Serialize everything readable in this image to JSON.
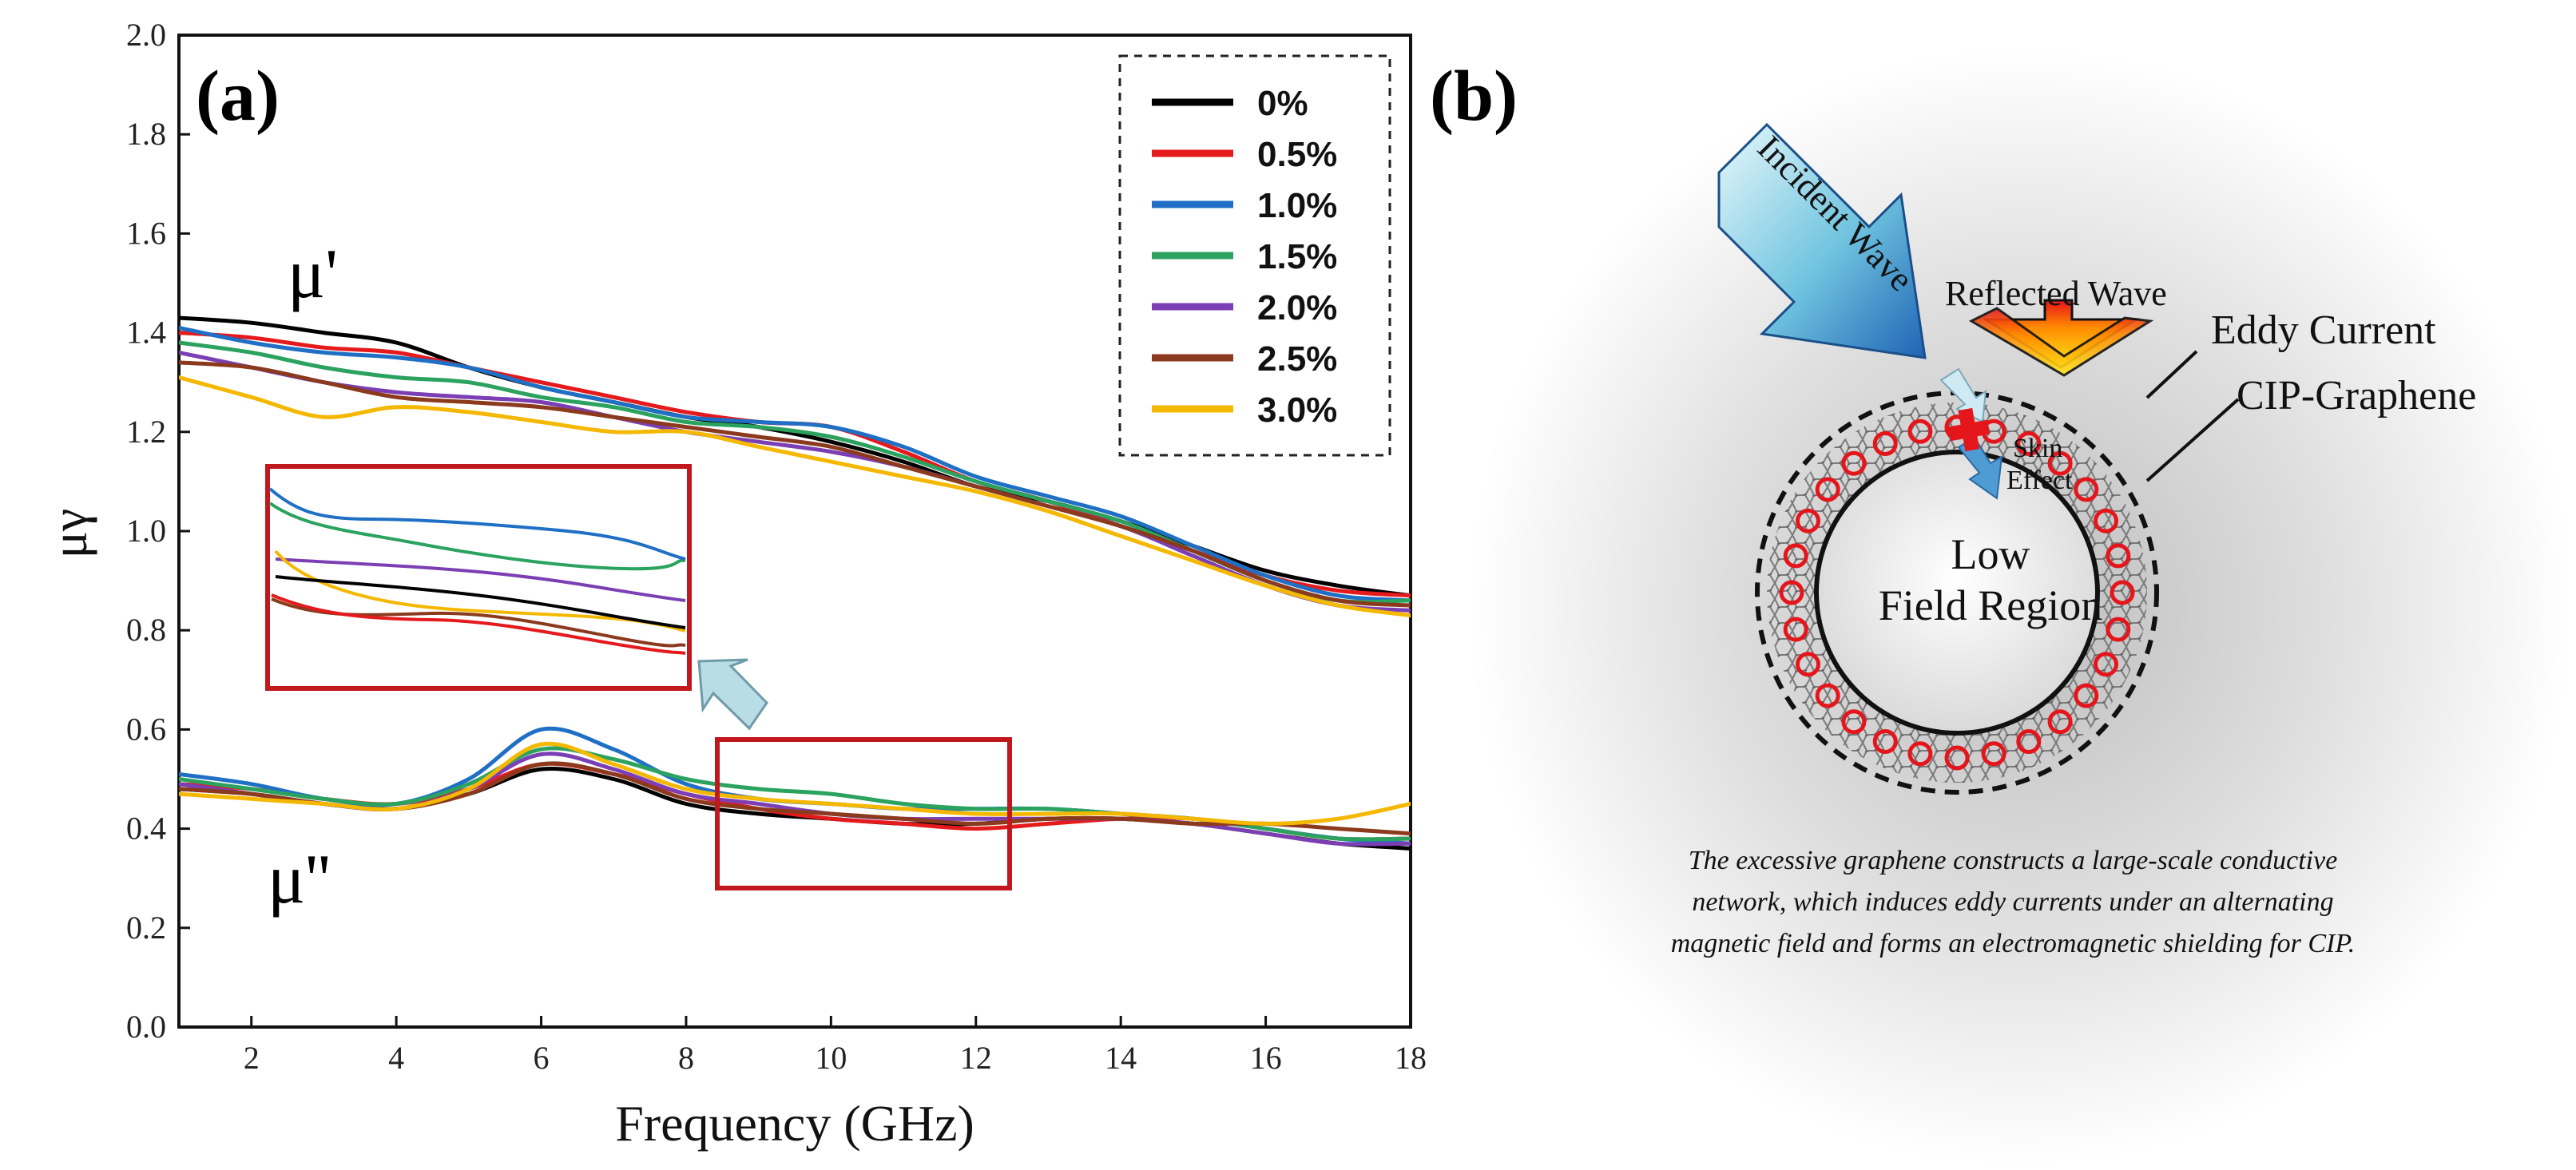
{
  "panel_a": {
    "label": "(a)"
  },
  "panel_b": {
    "label": "(b)"
  },
  "chart_data": {
    "type": "line",
    "title": "",
    "xlabel": "Frequency (GHz)",
    "ylabel": "μγ",
    "xlim": [
      1,
      18
    ],
    "ylim": [
      0,
      2
    ],
    "x_ticks": [
      "2",
      "4",
      "6",
      "8",
      "10",
      "12",
      "14",
      "16",
      "18"
    ],
    "y_ticks": [
      "0.0",
      "0.2",
      "0.4",
      "0.6",
      "0.8",
      "1.0",
      "1.2",
      "1.4",
      "1.6",
      "1.8",
      "2.0"
    ],
    "annotations": {
      "mu_real": "μ'",
      "mu_imag": "μ''"
    },
    "x": [
      1,
      2,
      3,
      4,
      5,
      6,
      7,
      8,
      9,
      10,
      11,
      12,
      13,
      14,
      15,
      16,
      17,
      18
    ],
    "series": [
      {
        "name": "0%",
        "color": "#000000",
        "mu_real": [
          1.43,
          1.42,
          1.4,
          1.38,
          1.33,
          1.29,
          1.26,
          1.23,
          1.21,
          1.18,
          1.14,
          1.09,
          1.06,
          1.02,
          0.97,
          0.92,
          0.89,
          0.87
        ],
        "mu_imag": [
          0.48,
          0.47,
          0.45,
          0.44,
          0.47,
          0.52,
          0.5,
          0.45,
          0.43,
          0.42,
          0.41,
          0.41,
          0.42,
          0.42,
          0.41,
          0.39,
          0.37,
          0.36
        ]
      },
      {
        "name": "0.5%",
        "color": "#e41a1c",
        "mu_real": [
          1.4,
          1.39,
          1.37,
          1.36,
          1.33,
          1.3,
          1.27,
          1.24,
          1.22,
          1.21,
          1.16,
          1.1,
          1.06,
          1.01,
          0.96,
          0.91,
          0.88,
          0.87
        ],
        "mu_imag": [
          0.49,
          0.48,
          0.46,
          0.45,
          0.48,
          0.53,
          0.51,
          0.47,
          0.44,
          0.42,
          0.41,
          0.4,
          0.41,
          0.42,
          0.42,
          0.4,
          0.38,
          0.38
        ]
      },
      {
        "name": "1.0%",
        "color": "#1f6fc5",
        "mu_real": [
          1.41,
          1.38,
          1.36,
          1.35,
          1.33,
          1.29,
          1.26,
          1.23,
          1.22,
          1.21,
          1.17,
          1.11,
          1.07,
          1.03,
          0.97,
          0.91,
          0.87,
          0.86
        ],
        "mu_imag": [
          0.51,
          0.49,
          0.46,
          0.45,
          0.5,
          0.6,
          0.56,
          0.49,
          0.46,
          0.45,
          0.44,
          0.44,
          0.44,
          0.43,
          0.42,
          0.4,
          0.38,
          0.37
        ]
      },
      {
        "name": "1.5%",
        "color": "#2ca25f",
        "mu_real": [
          1.38,
          1.36,
          1.33,
          1.31,
          1.3,
          1.27,
          1.25,
          1.22,
          1.21,
          1.19,
          1.15,
          1.1,
          1.06,
          1.02,
          0.96,
          0.9,
          0.86,
          0.86
        ],
        "mu_imag": [
          0.5,
          0.48,
          0.46,
          0.45,
          0.49,
          0.56,
          0.54,
          0.5,
          0.48,
          0.47,
          0.45,
          0.44,
          0.44,
          0.43,
          0.42,
          0.4,
          0.38,
          0.38
        ]
      },
      {
        "name": "2.0%",
        "color": "#7b3fb3",
        "mu_real": [
          1.36,
          1.33,
          1.3,
          1.28,
          1.27,
          1.26,
          1.23,
          1.2,
          1.18,
          1.16,
          1.13,
          1.09,
          1.05,
          1.01,
          0.95,
          0.89,
          0.85,
          0.84
        ],
        "mu_imag": [
          0.49,
          0.47,
          0.45,
          0.44,
          0.48,
          0.55,
          0.52,
          0.47,
          0.45,
          0.43,
          0.42,
          0.42,
          0.42,
          0.42,
          0.41,
          0.39,
          0.37,
          0.37
        ]
      },
      {
        "name": "2.5%",
        "color": "#8b3a1e",
        "mu_real": [
          1.34,
          1.33,
          1.3,
          1.27,
          1.26,
          1.25,
          1.23,
          1.21,
          1.19,
          1.17,
          1.13,
          1.09,
          1.05,
          1.01,
          0.96,
          0.9,
          0.86,
          0.85
        ],
        "mu_imag": [
          0.48,
          0.47,
          0.45,
          0.44,
          0.47,
          0.53,
          0.51,
          0.46,
          0.44,
          0.43,
          0.42,
          0.41,
          0.42,
          0.42,
          0.41,
          0.41,
          0.4,
          0.39
        ]
      },
      {
        "name": "3.0%",
        "color": "#f5b800",
        "mu_real": [
          1.31,
          1.27,
          1.23,
          1.25,
          1.24,
          1.22,
          1.2,
          1.2,
          1.17,
          1.14,
          1.11,
          1.08,
          1.04,
          0.99,
          0.94,
          0.89,
          0.85,
          0.83
        ],
        "mu_imag": [
          0.47,
          0.46,
          0.45,
          0.44,
          0.48,
          0.57,
          0.53,
          0.48,
          0.46,
          0.45,
          0.44,
          0.43,
          0.43,
          0.43,
          0.42,
          0.41,
          0.42,
          0.45
        ]
      }
    ],
    "inset_region": {
      "x_range": [
        8.5,
        12.5
      ],
      "y_range": [
        0.29,
        0.58
      ]
    },
    "legend": {
      "position": "top-right",
      "border": "dashed"
    }
  },
  "diagram": {
    "incident_wave": "Incident Wave",
    "reflected_wave": "Reflected Wave",
    "eddy_current": "Eddy Current",
    "cip_graphene": "CIP-Graphene",
    "skin": "Skin",
    "effect": "Effect",
    "low": "Low",
    "field_region": "Field Region",
    "caption_lines": [
      "The excessive graphene constructs a large-scale conductive",
      "network, which induces eddy currents under an alternating",
      "magnetic field and forms an electromagnetic shielding for CIP."
    ]
  }
}
